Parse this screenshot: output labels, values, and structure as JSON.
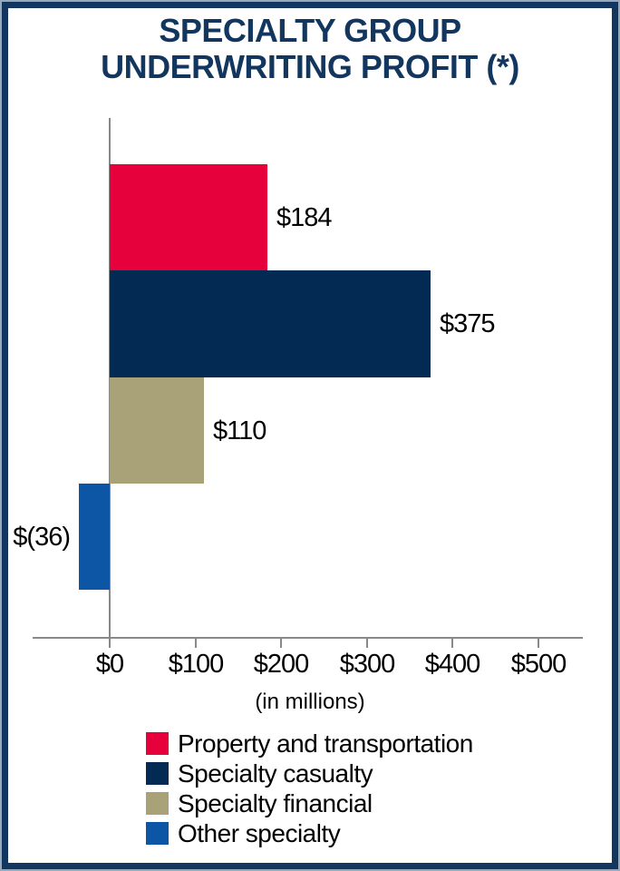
{
  "title": {
    "line1": "SPECIALTY GROUP",
    "line2": "UNDERWRITING PROFIT (*)"
  },
  "axis_note": "(in millions)",
  "chart_data": {
    "type": "bar",
    "orientation": "horizontal",
    "title": "SPECIALTY GROUP UNDERWRITING PROFIT (*)",
    "categories": [
      "Property and transportation",
      "Specialty casualty",
      "Specialty financial",
      "Other specialty"
    ],
    "values": [
      184,
      375,
      110,
      -36
    ],
    "value_labels": [
      "$184",
      "$375",
      "$110",
      "$(36)"
    ],
    "colors": [
      "#e6003c",
      "#032a52",
      "#a9a177",
      "#0d56a5"
    ],
    "xlabel": "(in millions)",
    "x_ticks": [
      0,
      100,
      200,
      300,
      400,
      500
    ],
    "x_tick_labels": [
      "$0",
      "$100",
      "$200",
      "$300",
      "$400",
      "$500"
    ],
    "xlim": [
      -90,
      555
    ],
    "grid": false,
    "legend_position": "bottom"
  },
  "legend": {
    "items": [
      {
        "label": "Property and transportation",
        "color": "#e6003c"
      },
      {
        "label": "Specialty casualty",
        "color": "#032a52"
      },
      {
        "label": "Specialty financial",
        "color": "#a9a177"
      },
      {
        "label": "Other specialty",
        "color": "#0d56a5"
      }
    ]
  },
  "colors": {
    "border_outer": "#97aabd",
    "border_inner": "#12365e",
    "title_text": "#12365e",
    "axis": "#898989",
    "label_text": "#000000",
    "background": "#ffffff"
  }
}
